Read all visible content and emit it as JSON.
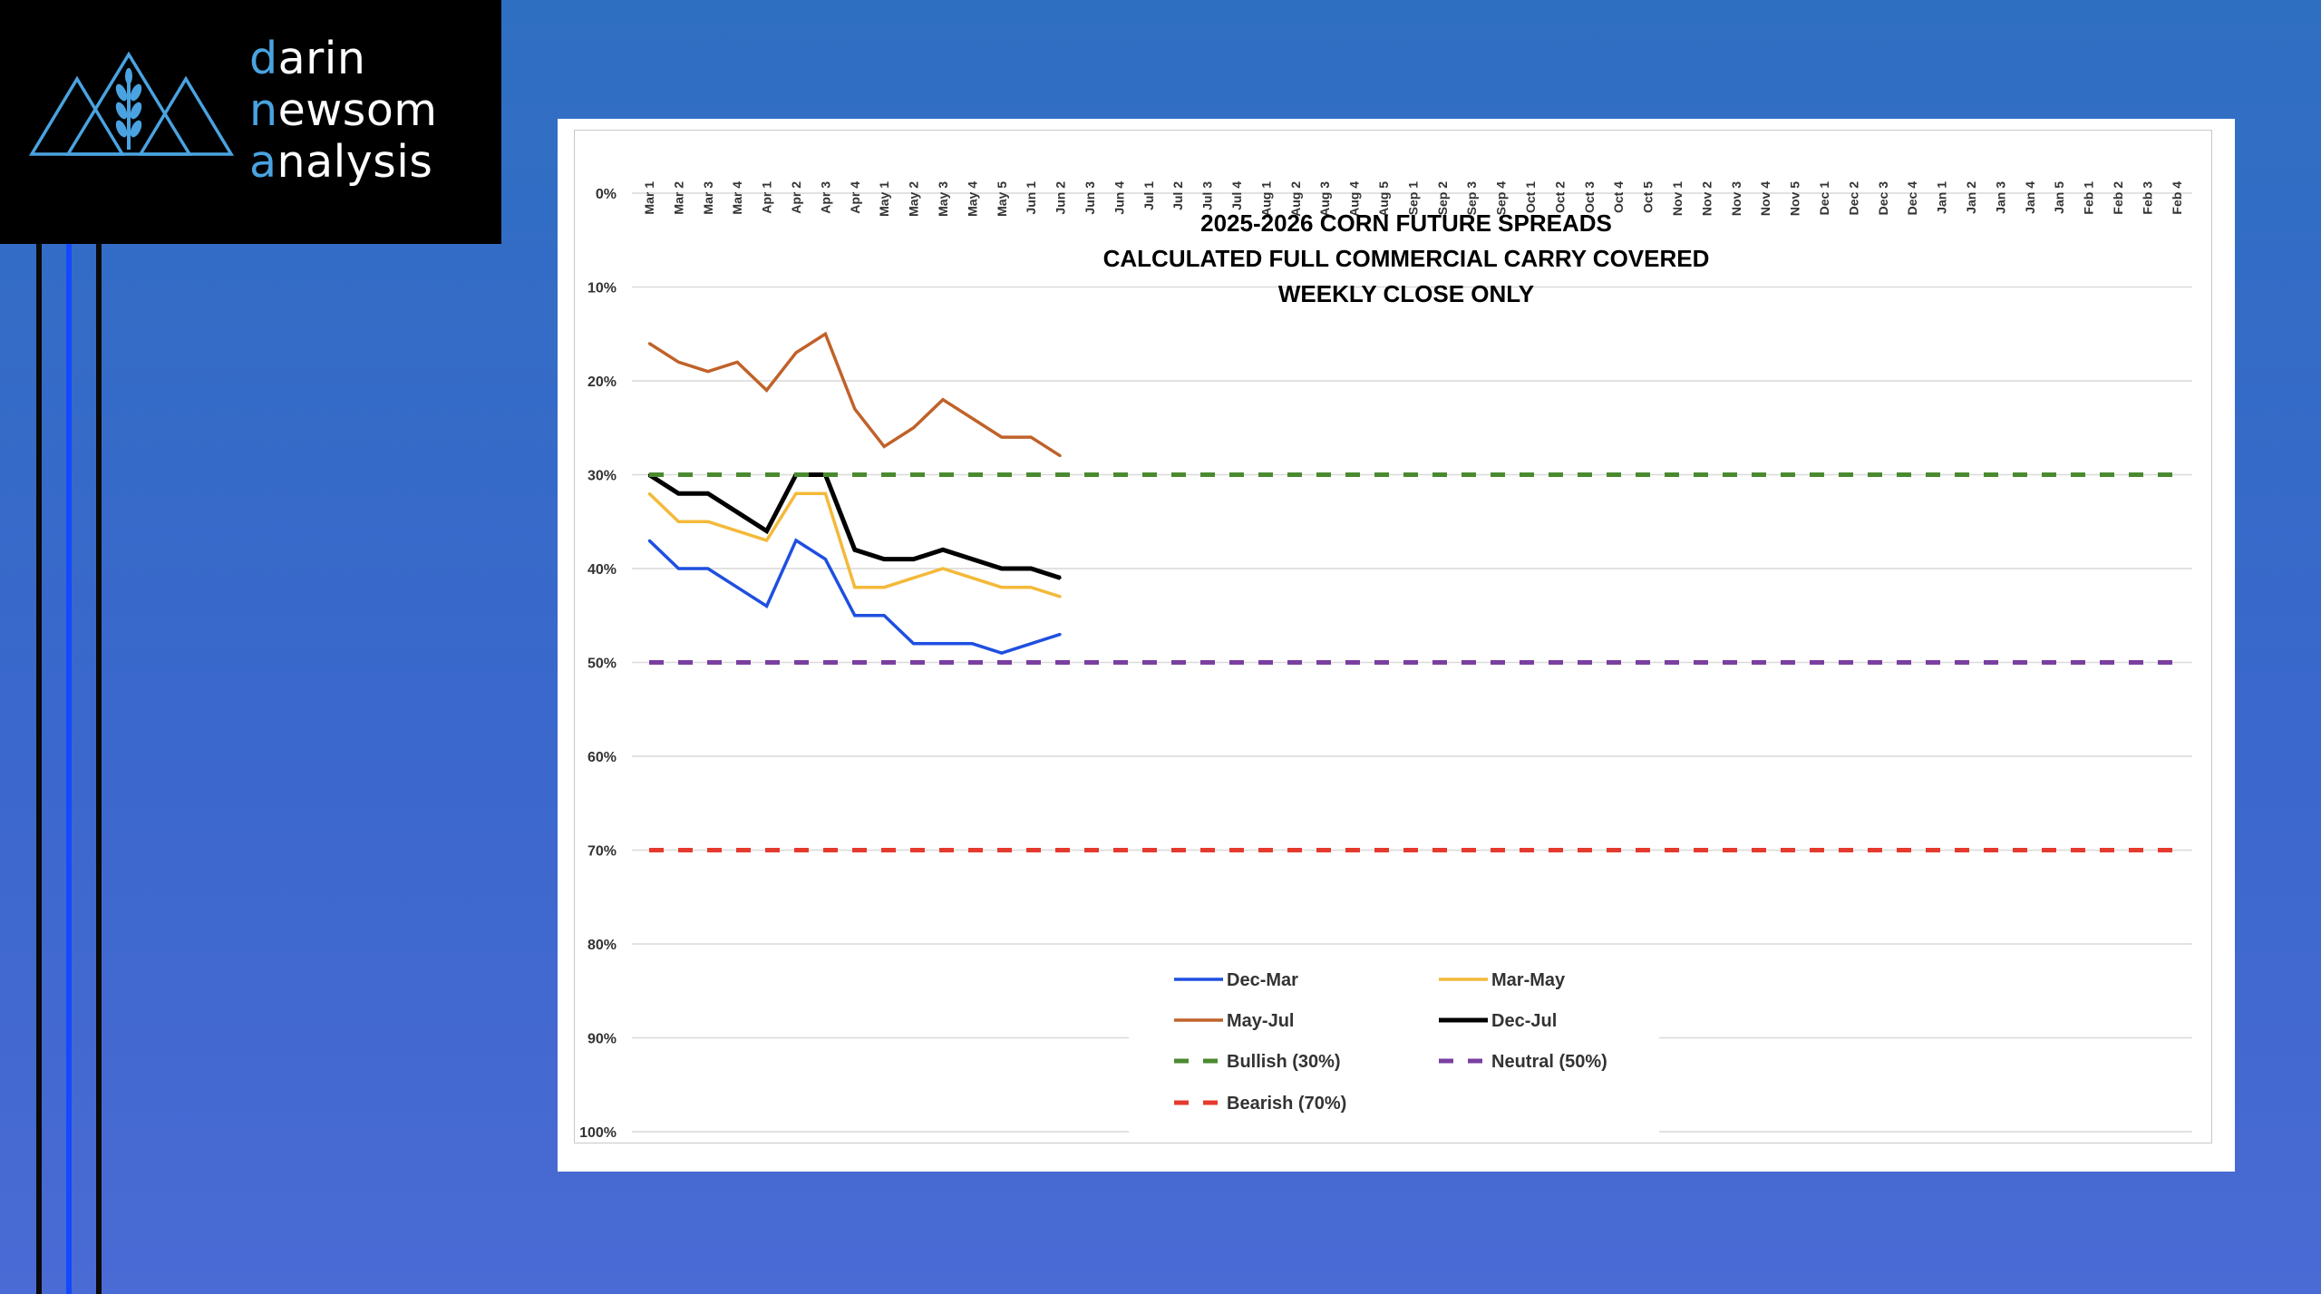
{
  "brand": {
    "lines": [
      {
        "accent": "d",
        "rest": "arin"
      },
      {
        "accent": "n",
        "rest": "ewsom"
      },
      {
        "accent": "a",
        "rest": "nalysis"
      }
    ],
    "accent_color": "#4aa3e0"
  },
  "chart_data": {
    "type": "line",
    "title_lines": [
      "2025-2026 CORN FUTURE SPREADS",
      "CALCULATED FULL COMMERCIAL CARRY COVERED",
      "WEEKLY CLOSE ONLY"
    ],
    "x_categories": [
      "Mar 1",
      "Mar 2",
      "Mar 3",
      "Mar 4",
      "Apr 1",
      "Apr 2",
      "Apr 3",
      "Apr 4",
      "May 1",
      "May 2",
      "May 3",
      "May 4",
      "May 5",
      "Jun 1",
      "Jun 2",
      "Jun 3",
      "Jun 4",
      "Jul 1",
      "Jul 2",
      "Jul 3",
      "Jul 4",
      "Aug 1",
      "Aug 2",
      "Aug 3",
      "Aug 4",
      "Aug 5",
      "Sep 1",
      "Sep 2",
      "Sep 3",
      "Sep 4",
      "Oct 1",
      "Oct 2",
      "Oct 3",
      "Oct 4",
      "Oct 5",
      "Nov 1",
      "Nov 2",
      "Nov 3",
      "Nov 4",
      "Nov 5",
      "Dec 1",
      "Dec 2",
      "Dec 3",
      "Dec 4",
      "Jan 1",
      "Jan 2",
      "Jan 3",
      "Jan 4",
      "Jan 5",
      "Feb 1",
      "Feb 2",
      "Feb 3",
      "Feb 4"
    ],
    "y_ticks": [
      "0%",
      "10%",
      "20%",
      "30%",
      "40%",
      "50%",
      "60%",
      "70%",
      "80%",
      "90%",
      "100%"
    ],
    "y_range": [
      0,
      100
    ],
    "y_reversed": true,
    "grid": "horizontal",
    "legend_position": "bottom-center",
    "series": [
      {
        "name": "Dec-Mar",
        "color": "#1f4fe0",
        "style": "solid",
        "values": [
          37,
          40,
          40,
          42,
          44,
          37,
          39,
          45,
          45,
          48,
          48,
          48,
          49,
          48,
          47
        ]
      },
      {
        "name": "Mar-May",
        "color": "#f4b93a",
        "style": "solid",
        "values": [
          32,
          35,
          35,
          36,
          37,
          32,
          32,
          42,
          42,
          41,
          40,
          41,
          42,
          42,
          43
        ]
      },
      {
        "name": "May-Jul",
        "color": "#c0622a",
        "style": "solid",
        "values": [
          16,
          18,
          19,
          18,
          21,
          17,
          15,
          23,
          27,
          25,
          22,
          24,
          26,
          26,
          28
        ]
      },
      {
        "name": "Dec-Jul",
        "color": "#000000",
        "style": "solid",
        "values": [
          30,
          32,
          32,
          34,
          36,
          30,
          30,
          38,
          39,
          39,
          38,
          39,
          40,
          40,
          41
        ]
      },
      {
        "name": "Bullish (30%)",
        "color": "#4a8a2f",
        "style": "dashed",
        "constant": 30
      },
      {
        "name": "Neutral (50%)",
        "color": "#7a3fa0",
        "style": "dashed",
        "constant": 50
      },
      {
        "name": "Bearish (70%)",
        "color": "#e53a2e",
        "style": "dashed",
        "constant": 70
      }
    ]
  }
}
